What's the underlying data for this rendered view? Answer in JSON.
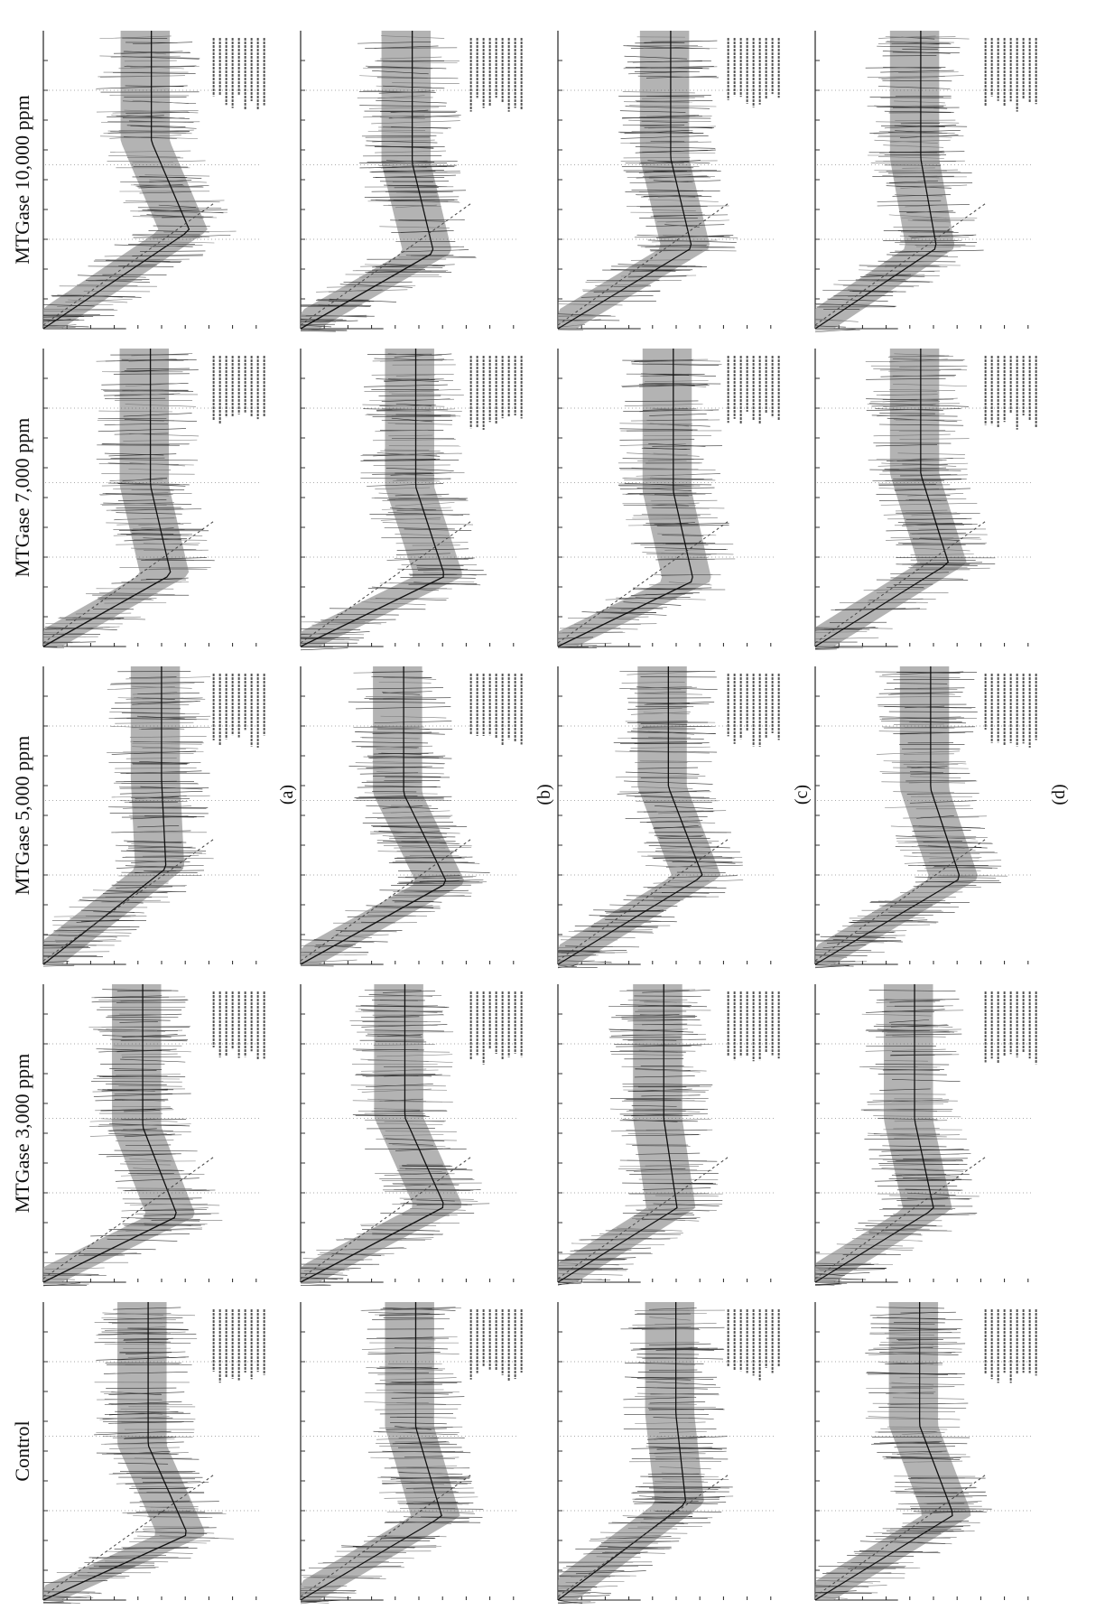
{
  "columns": [
    "Control",
    "MTGase 3,000 ppm",
    "MTGase 5,000 ppm",
    "MTGase 7,000 ppm",
    "MTGase 10,000 ppm"
  ],
  "rows": [
    "(a)",
    "(b)",
    "(c)",
    "(d)"
  ]
}
